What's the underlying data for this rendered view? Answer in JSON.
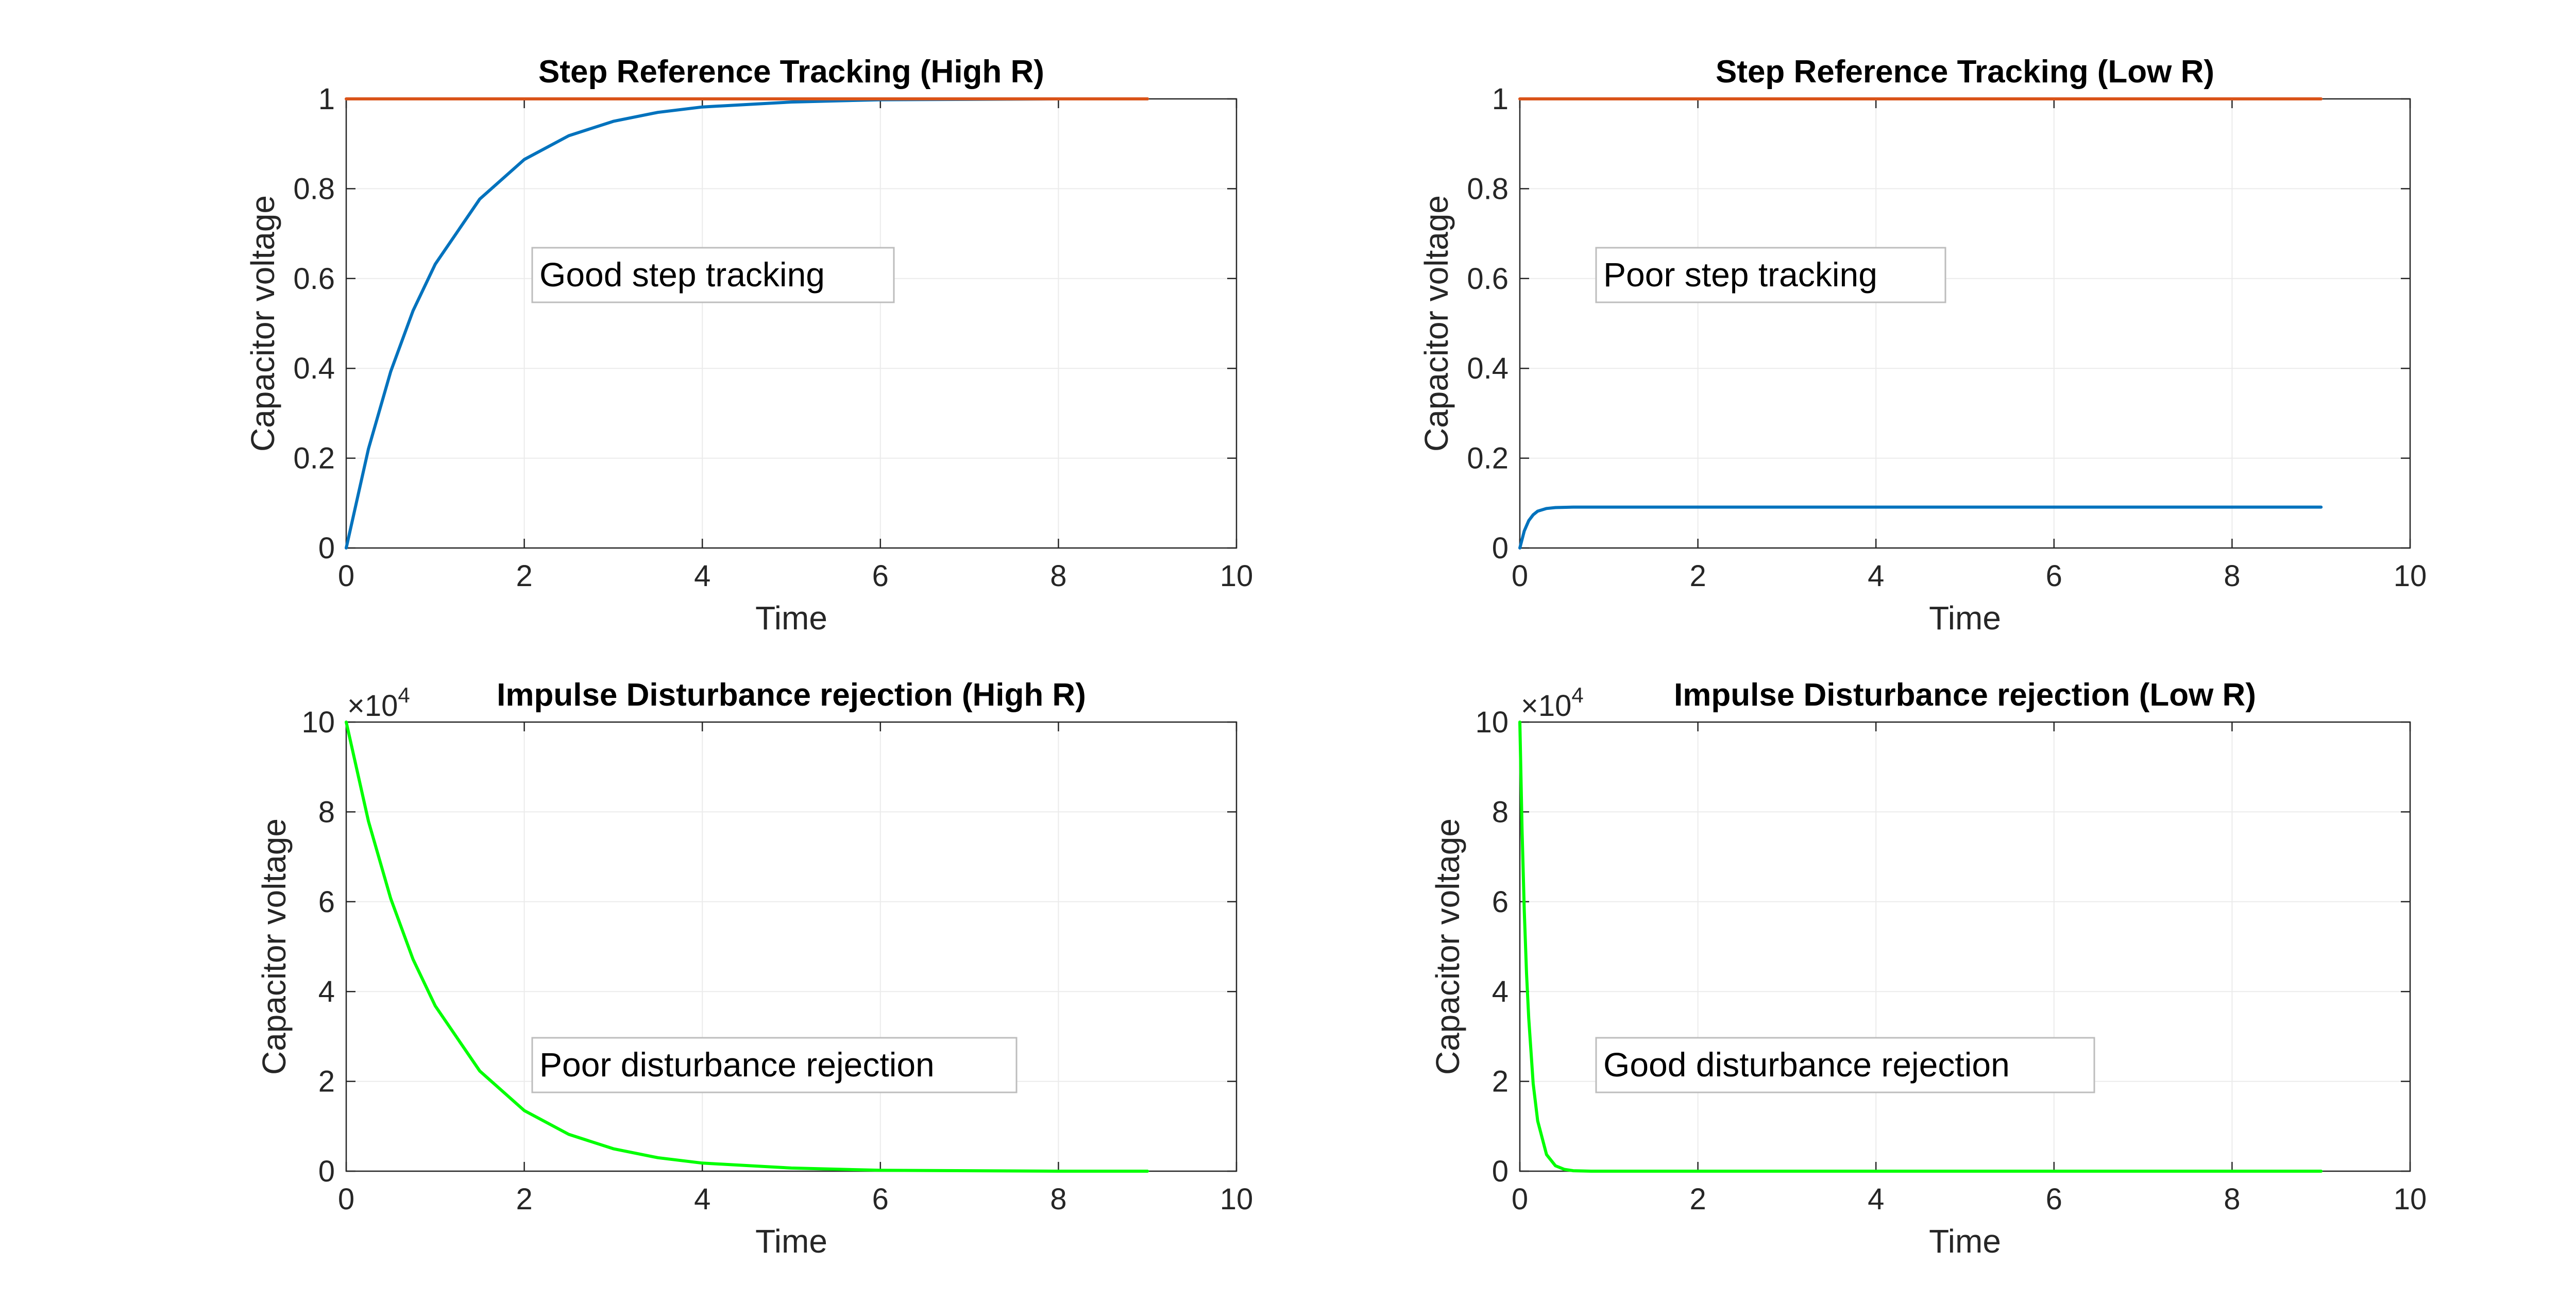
{
  "chart_data": [
    {
      "type": "line",
      "title": "Step Reference Tracking (High R)",
      "xlabel": "Time",
      "ylabel": "Capacitor voltage",
      "xlim": [
        0,
        10
      ],
      "ylim": [
        0,
        1
      ],
      "xticks": [
        "0",
        "2",
        "4",
        "6",
        "8",
        "10"
      ],
      "yticks": [
        "0",
        "0.2",
        "0.4",
        "0.6",
        "0.8",
        "1"
      ],
      "exponent_label": "",
      "grid": true,
      "annotation": "Good step tracking",
      "series": [
        {
          "color": "#0072BD",
          "x": [
            0,
            0.25,
            0.5,
            0.75,
            1,
            1.5,
            2,
            2.5,
            3,
            3.5,
            4,
            5,
            6,
            7,
            8,
            9
          ],
          "y": [
            0,
            0.221,
            0.393,
            0.528,
            0.632,
            0.777,
            0.865,
            0.918,
            0.95,
            0.97,
            0.982,
            0.993,
            0.998,
            0.999,
            1.0,
            1.0
          ]
        },
        {
          "color": "#D95319",
          "x": [
            0,
            9
          ],
          "y": [
            1,
            1
          ]
        }
      ]
    },
    {
      "type": "line",
      "title": "Step Reference Tracking (Low R)",
      "xlabel": "Time",
      "ylabel": "Capacitor voltage",
      "xlim": [
        0,
        10
      ],
      "ylim": [
        0,
        1
      ],
      "xticks": [
        "0",
        "2",
        "4",
        "6",
        "8",
        "10"
      ],
      "yticks": [
        "0",
        "0.2",
        "0.4",
        "0.6",
        "0.8",
        "1"
      ],
      "exponent_label": "",
      "grid": true,
      "annotation": "Poor step tracking",
      "series": [
        {
          "color": "#0072BD",
          "x": [
            0,
            0.05,
            0.1,
            0.15,
            0.2,
            0.3,
            0.4,
            0.6,
            1,
            2,
            4,
            6,
            9
          ],
          "y": [
            0,
            0.038,
            0.061,
            0.074,
            0.082,
            0.088,
            0.09,
            0.091,
            0.091,
            0.091,
            0.091,
            0.091,
            0.091
          ]
        },
        {
          "color": "#D95319",
          "x": [
            0,
            9
          ],
          "y": [
            1,
            1
          ]
        }
      ]
    },
    {
      "type": "line",
      "title": "Impulse Disturbance rejection (High R)",
      "xlabel": "Time",
      "ylabel": "Capacitor voltage",
      "xlim": [
        0,
        10
      ],
      "ylim": [
        0,
        10
      ],
      "xticks": [
        "0",
        "2",
        "4",
        "6",
        "8",
        "10"
      ],
      "yticks": [
        "0",
        "2",
        "4",
        "6",
        "8",
        "10"
      ],
      "exponent_label": "×10",
      "exponent_power": "4",
      "grid": true,
      "annotation": "Poor disturbance rejection",
      "series": [
        {
          "color": "#00FF00",
          "x": [
            0,
            0.25,
            0.5,
            0.75,
            1,
            1.5,
            2,
            2.5,
            3,
            3.5,
            4,
            5,
            6,
            7,
            8,
            9
          ],
          "y": [
            10,
            7.79,
            6.07,
            4.72,
            3.68,
            2.23,
            1.35,
            0.82,
            0.5,
            0.3,
            0.18,
            0.07,
            0.02,
            0.01,
            0.0,
            0.0
          ]
        }
      ]
    },
    {
      "type": "line",
      "title": "Impulse Disturbance rejection (Low R)",
      "xlabel": "Time",
      "ylabel": "Capacitor voltage",
      "xlim": [
        0,
        10
      ],
      "ylim": [
        0,
        10
      ],
      "xticks": [
        "0",
        "2",
        "4",
        "6",
        "8",
        "10"
      ],
      "yticks": [
        "0",
        "2",
        "4",
        "6",
        "8",
        "10"
      ],
      "exponent_label": "×10",
      "exponent_power": "4",
      "grid": true,
      "annotation": "Good disturbance rejection",
      "series": [
        {
          "color": "#00FF00",
          "x": [
            0,
            0.025,
            0.05,
            0.075,
            0.1,
            0.15,
            0.2,
            0.3,
            0.4,
            0.5,
            0.6,
            0.8,
            1,
            2,
            4,
            6,
            9
          ],
          "y": [
            10,
            7.6,
            5.8,
            4.4,
            3.4,
            1.95,
            1.12,
            0.37,
            0.12,
            0.04,
            0.01,
            0.0,
            0.0,
            0.0,
            0.0,
            0.0,
            0.0
          ]
        }
      ]
    }
  ]
}
